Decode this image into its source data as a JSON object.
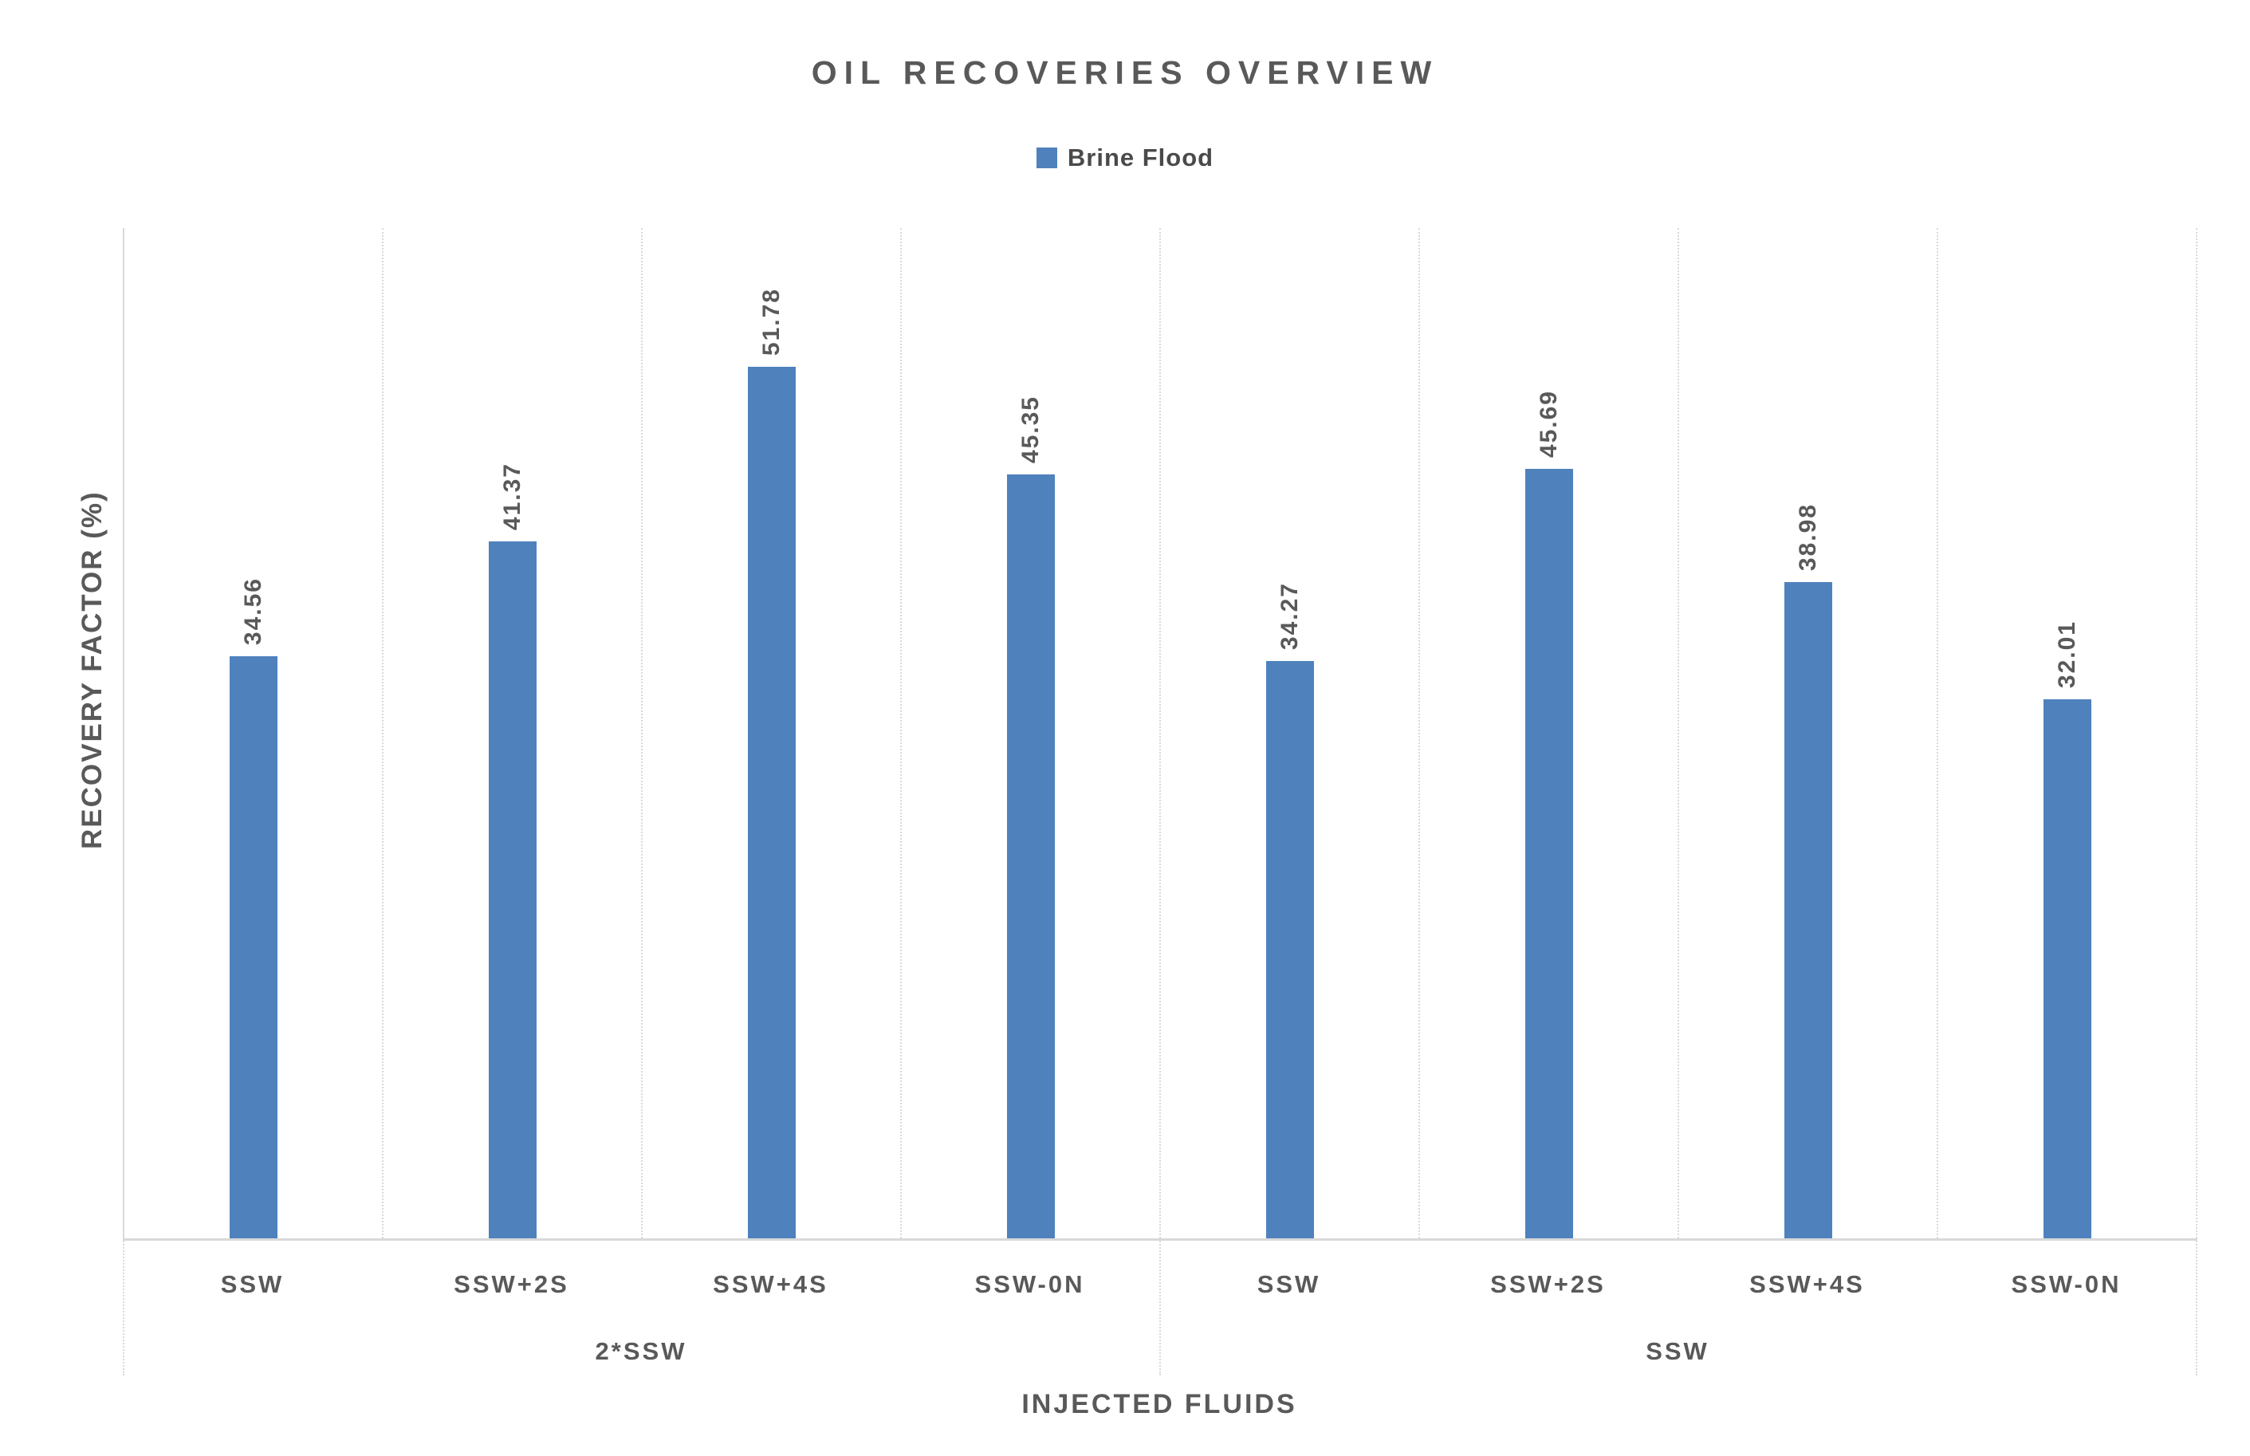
{
  "chart_data": {
    "type": "bar",
    "title": "OIL RECOVERIES OVERVIEW",
    "legend": {
      "position": "top",
      "entries": [
        {
          "label": "Brine Flood",
          "color": "#4F81BD"
        }
      ]
    },
    "xlabel": "INJECTED FLUIDS",
    "ylabel": "RECOVERY FACTOR (%)",
    "ylim": [
      0,
      60
    ],
    "y_tick_labels_visible": false,
    "grid": "vertical dotted lines between category slots",
    "data_label_rotation_degrees": -90,
    "colors": {
      "bar": "#4F81BD",
      "text": "#595959",
      "grid": "#D9D9D9"
    },
    "groups": [
      {
        "label": "2*SSW",
        "categories": [
          "SSW",
          "SSW+2S",
          "SSW+4S",
          "SSW-0N"
        ],
        "values": [
          34.56,
          41.37,
          51.78,
          45.35
        ]
      },
      {
        "label": "SSW",
        "categories": [
          "SSW",
          "SSW+2S",
          "SSW+4S",
          "SSW-0N"
        ],
        "values": [
          34.27,
          45.69,
          38.98,
          32.01
        ]
      }
    ],
    "series": [
      {
        "name": "Brine Flood",
        "values": [
          34.56,
          41.37,
          51.78,
          45.35,
          34.27,
          45.69,
          38.98,
          32.01
        ]
      }
    ]
  }
}
